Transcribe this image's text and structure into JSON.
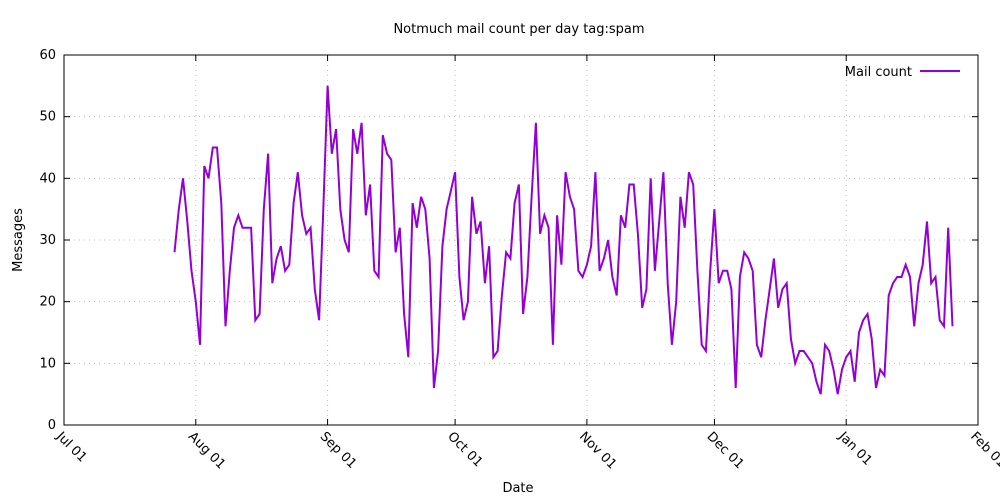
{
  "chart_data": {
    "type": "line",
    "title": "Notmuch mail count per day tag:spam",
    "xlabel": "Date",
    "ylabel": "Messages",
    "ylim": [
      0,
      60
    ],
    "yticks": [
      0,
      10,
      20,
      30,
      40,
      50,
      60
    ],
    "xticks": [
      {
        "label": "Jul 01",
        "day": 0
      },
      {
        "label": "Aug 01",
        "day": 31
      },
      {
        "label": "Sep 01",
        "day": 62
      },
      {
        "label": "Oct 01",
        "day": 92
      },
      {
        "label": "Nov 01",
        "day": 123
      },
      {
        "label": "Dec 01",
        "day": 153
      },
      {
        "label": "Jan 01",
        "day": 184
      },
      {
        "label": "Feb 01",
        "day": 215
      }
    ],
    "xlim_days": [
      0,
      215
    ],
    "grid": true,
    "legend_position": "top-right",
    "series": [
      {
        "name": "Mail count",
        "color": "#9400d3",
        "start_date": "Jul 27",
        "start_day": 26,
        "step_days": 1,
        "values": [
          28,
          35,
          40,
          33,
          25,
          20,
          13,
          42,
          40,
          45,
          45,
          36,
          16,
          25,
          32,
          34,
          32,
          32,
          32,
          17,
          18,
          35,
          44,
          23,
          27,
          29,
          25,
          26,
          36,
          41,
          34,
          31,
          32,
          22,
          17,
          35,
          55,
          44,
          48,
          35,
          30,
          28,
          48,
          44,
          49,
          34,
          39,
          25,
          24,
          47,
          44,
          43,
          28,
          32,
          18,
          11,
          36,
          32,
          37,
          35,
          27,
          6,
          12,
          29,
          35,
          38,
          41,
          24,
          17,
          20,
          37,
          31,
          33,
          23,
          29,
          11,
          12,
          21,
          28,
          27,
          36,
          39,
          18,
          24,
          37,
          49,
          31,
          34,
          32,
          13,
          34,
          26,
          41,
          37,
          35,
          25,
          24,
          26,
          29,
          41,
          25,
          27,
          30,
          24,
          21,
          34,
          32,
          39,
          39,
          31,
          19,
          22,
          40,
          25,
          33,
          41,
          23,
          13,
          20,
          37,
          32,
          41,
          39,
          25,
          13,
          12,
          25,
          35,
          23,
          25,
          25,
          22,
          6,
          24,
          28,
          27,
          25,
          13,
          11,
          17,
          22,
          27,
          19,
          22,
          23,
          14,
          10,
          12,
          12,
          11,
          10,
          7,
          5,
          13,
          12,
          9,
          5,
          9,
          11,
          12,
          7,
          15,
          17,
          18,
          14,
          6,
          9,
          8,
          21,
          23,
          24,
          24,
          26,
          24,
          16,
          23,
          26,
          33,
          23,
          24,
          17,
          16,
          32,
          16
        ]
      }
    ]
  }
}
